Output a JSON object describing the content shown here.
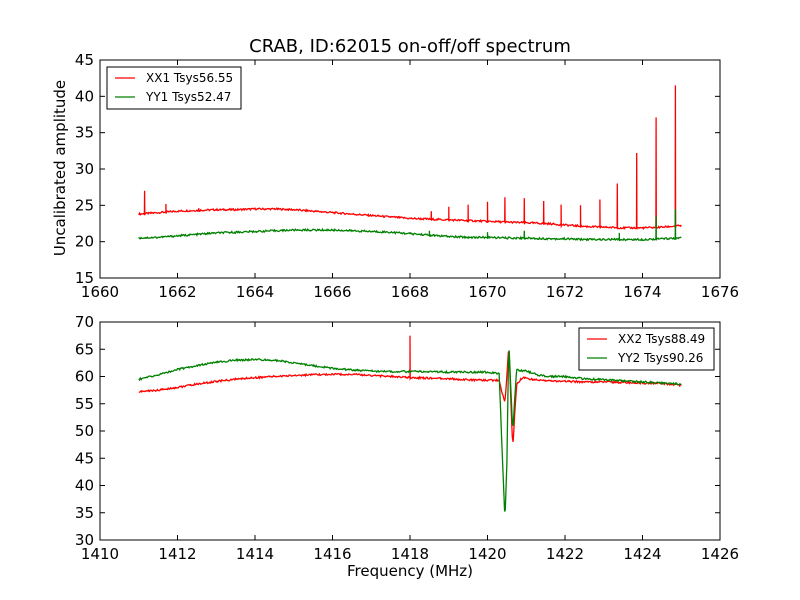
{
  "figure": {
    "title": "CRAB, ID:62015 on-off/off spectrum",
    "ylabel": "Uncalibrated amplitude",
    "xlabel": "Frequency (MHz)"
  },
  "chart_data": [
    {
      "type": "line",
      "title": "CRAB, ID:62015 on-off/off spectrum",
      "xlabel": "",
      "ylabel": "Uncalibrated amplitude",
      "xlim": [
        1660,
        1676
      ],
      "ylim": [
        15,
        45
      ],
      "xticks": [
        1660,
        1662,
        1664,
        1666,
        1668,
        1670,
        1672,
        1674,
        1676
      ],
      "yticks": [
        15,
        20,
        25,
        30,
        35,
        40,
        45
      ],
      "legend_position": "top-left",
      "series": [
        {
          "name": "XX1 Tsys56.55",
          "color": "#ff0000",
          "x": [
            1661.0,
            1661.5,
            1662.0,
            1662.5,
            1663.0,
            1663.5,
            1664.0,
            1664.5,
            1665.0,
            1665.5,
            1666.0,
            1666.5,
            1667.0,
            1667.5,
            1668.0,
            1668.5,
            1669.0,
            1669.5,
            1670.0,
            1670.5,
            1671.0,
            1671.5,
            1672.0,
            1672.5,
            1673.0,
            1673.5,
            1674.0,
            1674.5,
            1675.0
          ],
          "y": [
            23.8,
            24.0,
            24.2,
            24.3,
            24.4,
            24.4,
            24.5,
            24.5,
            24.4,
            24.2,
            24.0,
            23.8,
            23.6,
            23.4,
            23.2,
            23.1,
            23.0,
            22.9,
            22.8,
            22.7,
            22.6,
            22.5,
            22.3,
            22.1,
            22.0,
            21.9,
            21.9,
            22.0,
            22.2
          ],
          "spikes": [
            [
              1661.15,
              27.0
            ],
            [
              1661.7,
              25.2
            ],
            [
              1662.55,
              24.6
            ],
            [
              1668.55,
              24.2
            ],
            [
              1669.0,
              24.8
            ],
            [
              1669.5,
              25.1
            ],
            [
              1670.0,
              25.5
            ],
            [
              1670.45,
              26.1
            ],
            [
              1670.95,
              26.0
            ],
            [
              1671.45,
              25.6
            ],
            [
              1671.9,
              25.1
            ],
            [
              1672.4,
              25.0
            ],
            [
              1672.9,
              25.8
            ],
            [
              1673.35,
              28.0
            ],
            [
              1673.85,
              32.2
            ],
            [
              1674.35,
              37.1
            ],
            [
              1674.85,
              41.5
            ]
          ]
        },
        {
          "name": "YY1 Tsys52.47",
          "color": "#008000",
          "x": [
            1661.0,
            1661.5,
            1662.0,
            1662.5,
            1663.0,
            1663.5,
            1664.0,
            1664.5,
            1665.0,
            1665.5,
            1666.0,
            1666.5,
            1667.0,
            1667.5,
            1668.0,
            1668.5,
            1669.0,
            1669.5,
            1670.0,
            1670.5,
            1671.0,
            1671.5,
            1672.0,
            1672.5,
            1673.0,
            1673.5,
            1674.0,
            1674.5,
            1675.0
          ],
          "y": [
            20.5,
            20.6,
            20.8,
            21.0,
            21.2,
            21.3,
            21.4,
            21.5,
            21.6,
            21.6,
            21.6,
            21.5,
            21.4,
            21.3,
            21.1,
            20.9,
            20.7,
            20.6,
            20.6,
            20.5,
            20.5,
            20.4,
            20.4,
            20.3,
            20.3,
            20.3,
            20.3,
            20.4,
            20.5
          ],
          "spikes": [
            [
              1668.5,
              21.5
            ],
            [
              1670.0,
              21.3
            ],
            [
              1670.95,
              21.5
            ],
            [
              1673.4,
              21.2
            ],
            [
              1674.35,
              23.5
            ],
            [
              1674.85,
              24.5
            ]
          ]
        }
      ]
    },
    {
      "type": "line",
      "title": "",
      "xlabel": "Frequency (MHz)",
      "ylabel": "",
      "xlim": [
        1410,
        1426
      ],
      "ylim": [
        30,
        70
      ],
      "xticks": [
        1410,
        1412,
        1414,
        1416,
        1418,
        1420,
        1422,
        1424,
        1426
      ],
      "yticks": [
        30,
        35,
        40,
        45,
        50,
        55,
        60,
        65,
        70
      ],
      "legend_position": "top-right",
      "series": [
        {
          "name": "XX2 Tsys88.49",
          "color": "#ff0000",
          "x": [
            1411.0,
            1411.5,
            1412.0,
            1412.5,
            1413.0,
            1413.5,
            1414.0,
            1414.5,
            1415.0,
            1415.5,
            1416.0,
            1416.5,
            1417.0,
            1417.5,
            1418.0,
            1418.5,
            1419.0,
            1419.5,
            1420.0,
            1420.3,
            1420.45,
            1420.55,
            1420.65,
            1420.75,
            1420.9,
            1421.2,
            1421.6,
            1422.0,
            1422.5,
            1423.0,
            1423.5,
            1424.0,
            1424.5,
            1425.0
          ],
          "y": [
            57.2,
            57.5,
            58.0,
            58.6,
            59.1,
            59.5,
            59.8,
            60.0,
            60.2,
            60.3,
            60.4,
            60.4,
            60.2,
            60.0,
            59.8,
            59.7,
            59.6,
            59.4,
            59.3,
            59.3,
            55.0,
            65.5,
            47.0,
            58.5,
            59.8,
            59.4,
            59.2,
            59.1,
            59.0,
            59.0,
            58.9,
            58.8,
            58.7,
            58.4
          ],
          "spikes": [
            [
              1418.0,
              67.5
            ]
          ]
        },
        {
          "name": "YY2 Tsys90.26",
          "color": "#008000",
          "x": [
            1411.0,
            1411.5,
            1412.0,
            1412.5,
            1413.0,
            1413.5,
            1414.0,
            1414.5,
            1415.0,
            1415.5,
            1416.0,
            1416.5,
            1417.0,
            1417.5,
            1418.0,
            1418.5,
            1419.0,
            1419.5,
            1420.0,
            1420.3,
            1420.45,
            1420.5,
            1420.55,
            1420.65,
            1420.75,
            1421.0,
            1421.3,
            1421.6,
            1422.0,
            1422.5,
            1423.0,
            1423.5,
            1424.0,
            1424.5,
            1425.0
          ],
          "y": [
            59.5,
            60.3,
            61.3,
            62.0,
            62.6,
            63.0,
            63.1,
            63.0,
            62.5,
            62.0,
            61.5,
            61.2,
            61.0,
            60.9,
            60.9,
            60.9,
            60.8,
            60.8,
            60.8,
            60.5,
            33.5,
            44.0,
            66.5,
            50.0,
            61.2,
            61.0,
            60.3,
            60.0,
            60.0,
            59.6,
            59.4,
            59.2,
            59.0,
            58.8,
            58.6
          ],
          "spikes": []
        }
      ]
    }
  ]
}
